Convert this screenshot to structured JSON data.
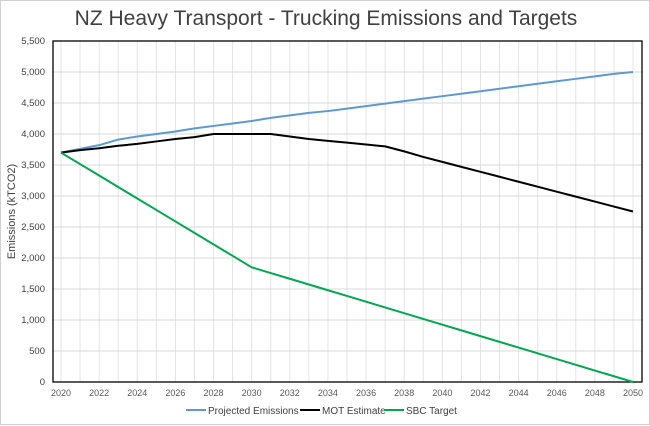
{
  "chart_data": {
    "type": "line",
    "title": "NZ Heavy Transport - Trucking Emissions and Targets",
    "xlabel": "",
    "ylabel": "Emissions (kTCO2)",
    "xlim": [
      2020,
      2050
    ],
    "ylim": [
      0,
      5500
    ],
    "x_tick_labels": [
      "2020",
      "2022",
      "2024",
      "2026",
      "2028",
      "2030",
      "2032",
      "2034",
      "2036",
      "2038",
      "2040",
      "2042",
      "2044",
      "2046",
      "2048",
      "2050"
    ],
    "y_tick_labels": [
      "0",
      "500",
      "1,000",
      "1,500",
      "2,000",
      "2,500",
      "3,000",
      "3,500",
      "4,000",
      "4,500",
      "5,000",
      "5,500"
    ],
    "grid": true,
    "legend_position": "bottom",
    "x": [
      2020,
      2021,
      2022,
      2023,
      2024,
      2025,
      2026,
      2027,
      2028,
      2029,
      2030,
      2031,
      2032,
      2033,
      2034,
      2035,
      2036,
      2037,
      2038,
      2039,
      2040,
      2041,
      2042,
      2043,
      2044,
      2045,
      2046,
      2047,
      2048,
      2049,
      2050
    ],
    "series": [
      {
        "name": "Projected Emissions",
        "color": "#5b9bd5",
        "values": [
          3700,
          3760,
          3820,
          3910,
          3960,
          4000,
          4040,
          4090,
          4130,
          4170,
          4210,
          4260,
          4300,
          4340,
          4370,
          4410,
          4450,
          4490,
          4530,
          4570,
          4610,
          4650,
          4690,
          4730,
          4770,
          4810,
          4850,
          4890,
          4930,
          4970,
          5000
        ]
      },
      {
        "name": "MOT Estimate",
        "color": "#000000",
        "values": [
          3700,
          3740,
          3770,
          3810,
          3840,
          3880,
          3920,
          3950,
          4000,
          4000,
          4000,
          4000,
          3960,
          3920,
          3890,
          3860,
          3830,
          3800,
          3720,
          3630,
          3550,
          3470,
          3390,
          3310,
          3230,
          3150,
          3070,
          2990,
          2910,
          2830,
          2750
        ]
      },
      {
        "name": "SBC Target",
        "color": "#00a84f",
        "values": [
          3700,
          3515,
          3330,
          3145,
          2960,
          2775,
          2590,
          2405,
          2220,
          2035,
          1850,
          1757.5,
          1665,
          1572.5,
          1480,
          1387.5,
          1295,
          1202.5,
          1110,
          1017.5,
          925,
          832.5,
          740,
          647.5,
          555,
          462.5,
          370,
          277.5,
          185,
          92.5,
          0
        ]
      }
    ]
  }
}
